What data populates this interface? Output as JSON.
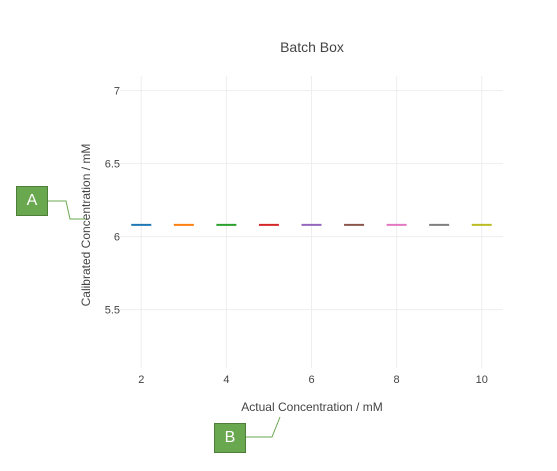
{
  "chart_data": {
    "type": "scatter",
    "title": "Batch Box",
    "xlabel": "Actual Concentration / mM",
    "ylabel": "Calibrated Concentration / mM",
    "xlim": [
      1.5,
      10.5
    ],
    "ylim": [
      5.1,
      7.1
    ],
    "x_ticks": [
      2,
      4,
      6,
      8,
      10
    ],
    "y_ticks": [
      5.5,
      6,
      6.5,
      7
    ],
    "grid": true,
    "marker": "horizontal-line",
    "series": [
      {
        "x": 2,
        "y": 6.08,
        "color": "#1f77b4"
      },
      {
        "x": 3,
        "y": 6.08,
        "color": "#ff7f0e"
      },
      {
        "x": 4,
        "y": 6.08,
        "color": "#2ca02c"
      },
      {
        "x": 5,
        "y": 6.08,
        "color": "#d62728"
      },
      {
        "x": 6,
        "y": 6.08,
        "color": "#9467bd"
      },
      {
        "x": 7,
        "y": 6.08,
        "color": "#8c564b"
      },
      {
        "x": 8,
        "y": 6.08,
        "color": "#e377c2"
      },
      {
        "x": 9,
        "y": 6.08,
        "color": "#7f7f7f"
      },
      {
        "x": 10,
        "y": 6.08,
        "color": "#bcbd22"
      }
    ]
  },
  "callouts": {
    "a": "A",
    "b": "B"
  },
  "colors": {
    "grid": "#eeeeee",
    "text": "#444444",
    "callout_fill": "#6aa84f"
  }
}
